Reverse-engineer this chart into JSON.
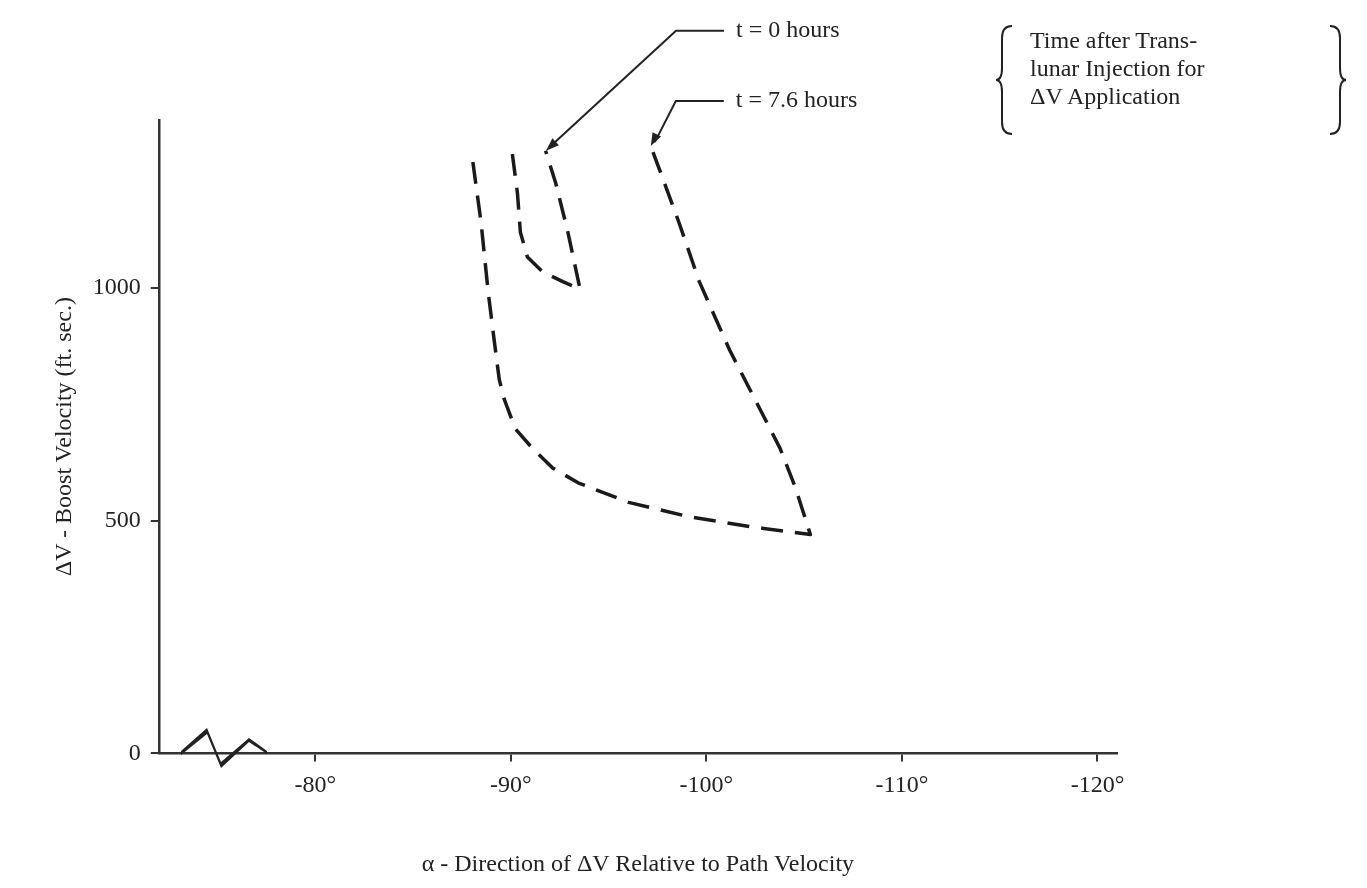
{
  "chart_data": {
    "type": "line",
    "xlabel": "α - Direction of ΔV Relative to Path Velocity",
    "ylabel": "ΔV - Boost Velocity (ft. sec.)",
    "xlim": [
      -72,
      -121
    ],
    "ylim": [
      0,
      1360
    ],
    "xticks": [
      {
        "value": -80,
        "label": "-80°"
      },
      {
        "value": -90,
        "label": "-90°"
      },
      {
        "value": -100,
        "label": "-100°"
      },
      {
        "value": -110,
        "label": "-110°"
      },
      {
        "value": -120,
        "label": "-120°"
      }
    ],
    "yticks": [
      0,
      500,
      1000
    ],
    "grid": false,
    "legend": false,
    "marker": "none",
    "line_style": "dashed",
    "series": [
      {
        "color": "#1a1a1a",
        "x": [
          -90.08,
          -90.34,
          -90.49,
          -90.85,
          -91.63,
          -92.66,
          -93.54,
          -92.92,
          -92.3,
          -91.78
        ],
        "values": [
          1287,
          1203,
          1119,
          1066,
          1034,
          1013,
          997,
          1119,
          1224,
          1294
        ]
      },
      {
        "color": "#1a1a1a",
        "x": [
          -88.06,
          -88.48,
          -88.84,
          -89.15,
          -89.41,
          -89.66,
          -90.23,
          -91.11,
          -92.14,
          -93.44,
          -96.02,
          -99.12,
          -102.22,
          -105.32,
          -104.55,
          -103.77,
          -102.22,
          -101.19,
          -99.64,
          -98.6,
          -97.16
        ],
        "values": [
          1270,
          1140,
          992,
          887,
          803,
          761,
          697,
          655,
          613,
          581,
          539,
          508,
          487,
          470,
          571,
          655,
          782,
          866,
          1013,
          1140,
          1304
        ]
      }
    ],
    "annotations": [
      {
        "text": "t = 0 hours",
        "x": -91.8,
        "y": 1294
      },
      {
        "text": "t = 7.6 hours",
        "x": -97.16,
        "y": 1304
      },
      "Time after Trans-\nlunar Injection for\nΔV Application"
    ]
  }
}
